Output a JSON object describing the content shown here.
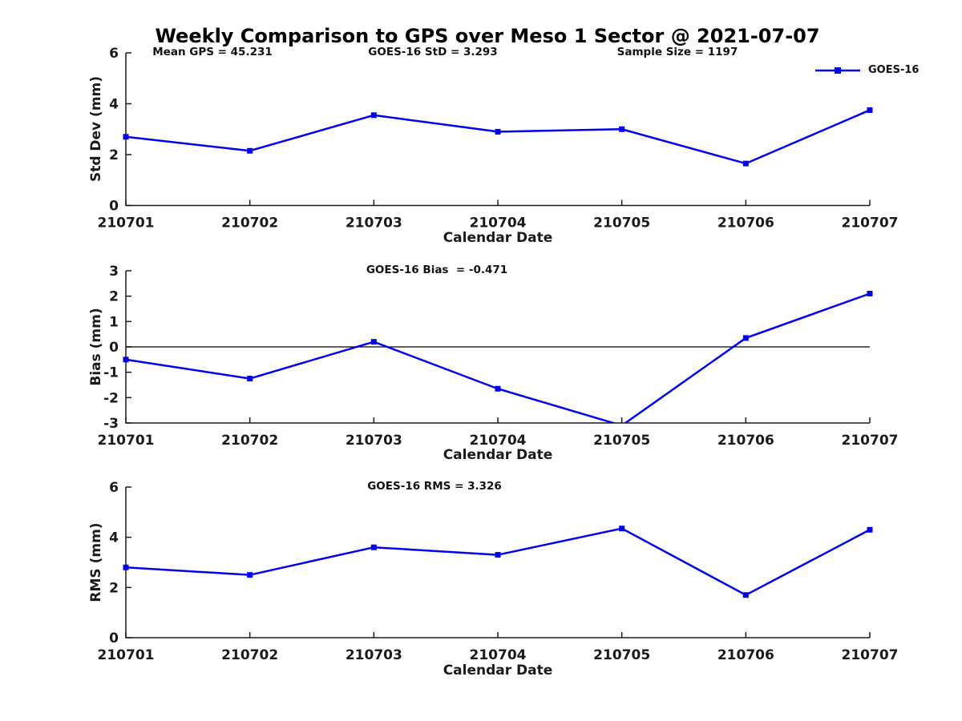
{
  "figure": {
    "title": "Weekly Comparison to GPS over Meso 1 Sector @ 2021-07-07",
    "axis_color": "#1a1a1a",
    "background": "#ffffff"
  },
  "legend": {
    "visible": true,
    "position": "top-right",
    "entries": [
      "GOES-16"
    ]
  },
  "chart_data": [
    {
      "type": "line",
      "annotations": [
        "Mean GPS = 45.231",
        "GOES-16 StD = 3.293",
        "Sample Size = 1197"
      ],
      "xlabel": "Calendar Date",
      "ylabel": "Std Dev (mm)",
      "categories": [
        "210701",
        "210702",
        "210703",
        "210704",
        "210705",
        "210706",
        "210707"
      ],
      "series": [
        {
          "name": "GOES-16",
          "color": "#0000ee",
          "values": [
            2.7,
            2.15,
            3.55,
            2.9,
            3.0,
            1.65,
            3.75
          ]
        }
      ],
      "ylim": [
        0,
        6
      ],
      "yticks": [
        0,
        2,
        4,
        6
      ],
      "grid": false,
      "zero_line": false
    },
    {
      "type": "line",
      "annotations": [
        "GOES-16 Bias  = -0.471"
      ],
      "xlabel": "Calendar Date",
      "ylabel": "Bias (mm)",
      "categories": [
        "210701",
        "210702",
        "210703",
        "210704",
        "210705",
        "210706",
        "210707"
      ],
      "series": [
        {
          "name": "GOES-16",
          "color": "#0000ee",
          "values": [
            -0.5,
            -1.25,
            0.2,
            -1.65,
            -3.1,
            0.35,
            2.1
          ]
        }
      ],
      "ylim": [
        -3,
        3
      ],
      "yticks": [
        -3,
        -2,
        -1,
        0,
        1,
        2,
        3
      ],
      "grid": false,
      "zero_line": true
    },
    {
      "type": "line",
      "annotations": [
        "GOES-16 RMS = 3.326"
      ],
      "xlabel": "Calendar Date",
      "ylabel": "RMS (mm)",
      "categories": [
        "210701",
        "210702",
        "210703",
        "210704",
        "210705",
        "210706",
        "210707"
      ],
      "series": [
        {
          "name": "GOES-16",
          "color": "#0000ee",
          "values": [
            2.8,
            2.5,
            3.6,
            3.3,
            4.35,
            1.7,
            4.3
          ]
        }
      ],
      "ylim": [
        0,
        6
      ],
      "yticks": [
        0,
        2,
        4,
        6
      ],
      "grid": false,
      "zero_line": false
    }
  ]
}
